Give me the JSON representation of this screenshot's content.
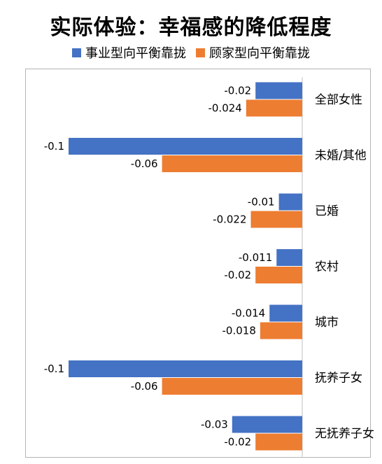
{
  "chart_data": {
    "type": "bar",
    "orientation": "horizontal",
    "title": "实际体验：幸福感的降低程度",
    "categories": [
      "全部女性",
      "未婚/其他",
      "已婚",
      "农村",
      "城市",
      "抚养子女",
      "无抚养子女"
    ],
    "series": [
      {
        "name": "事业型向平衡靠拢",
        "color": "#4472c4",
        "values": [
          -0.02,
          -0.1,
          -0.01,
          -0.011,
          -0.014,
          -0.1,
          -0.03
        ],
        "labels": [
          "-0.02",
          "-0.1",
          "-0.01",
          "-0.011",
          "-0.014",
          "-0.1",
          "-0.03"
        ]
      },
      {
        "name": "顾家型向平衡靠拢",
        "color": "#ed7d31",
        "values": [
          -0.024,
          -0.06,
          -0.022,
          -0.02,
          -0.018,
          -0.06,
          -0.02
        ],
        "labels": [
          "-0.024",
          "-0.06",
          "-0.022",
          "-0.02",
          "-0.018",
          "-0.06",
          "-0.02"
        ]
      }
    ],
    "xlim": [
      -0.12,
      0
    ],
    "category_axis": "right",
    "grid": false,
    "legend_position": "top"
  }
}
